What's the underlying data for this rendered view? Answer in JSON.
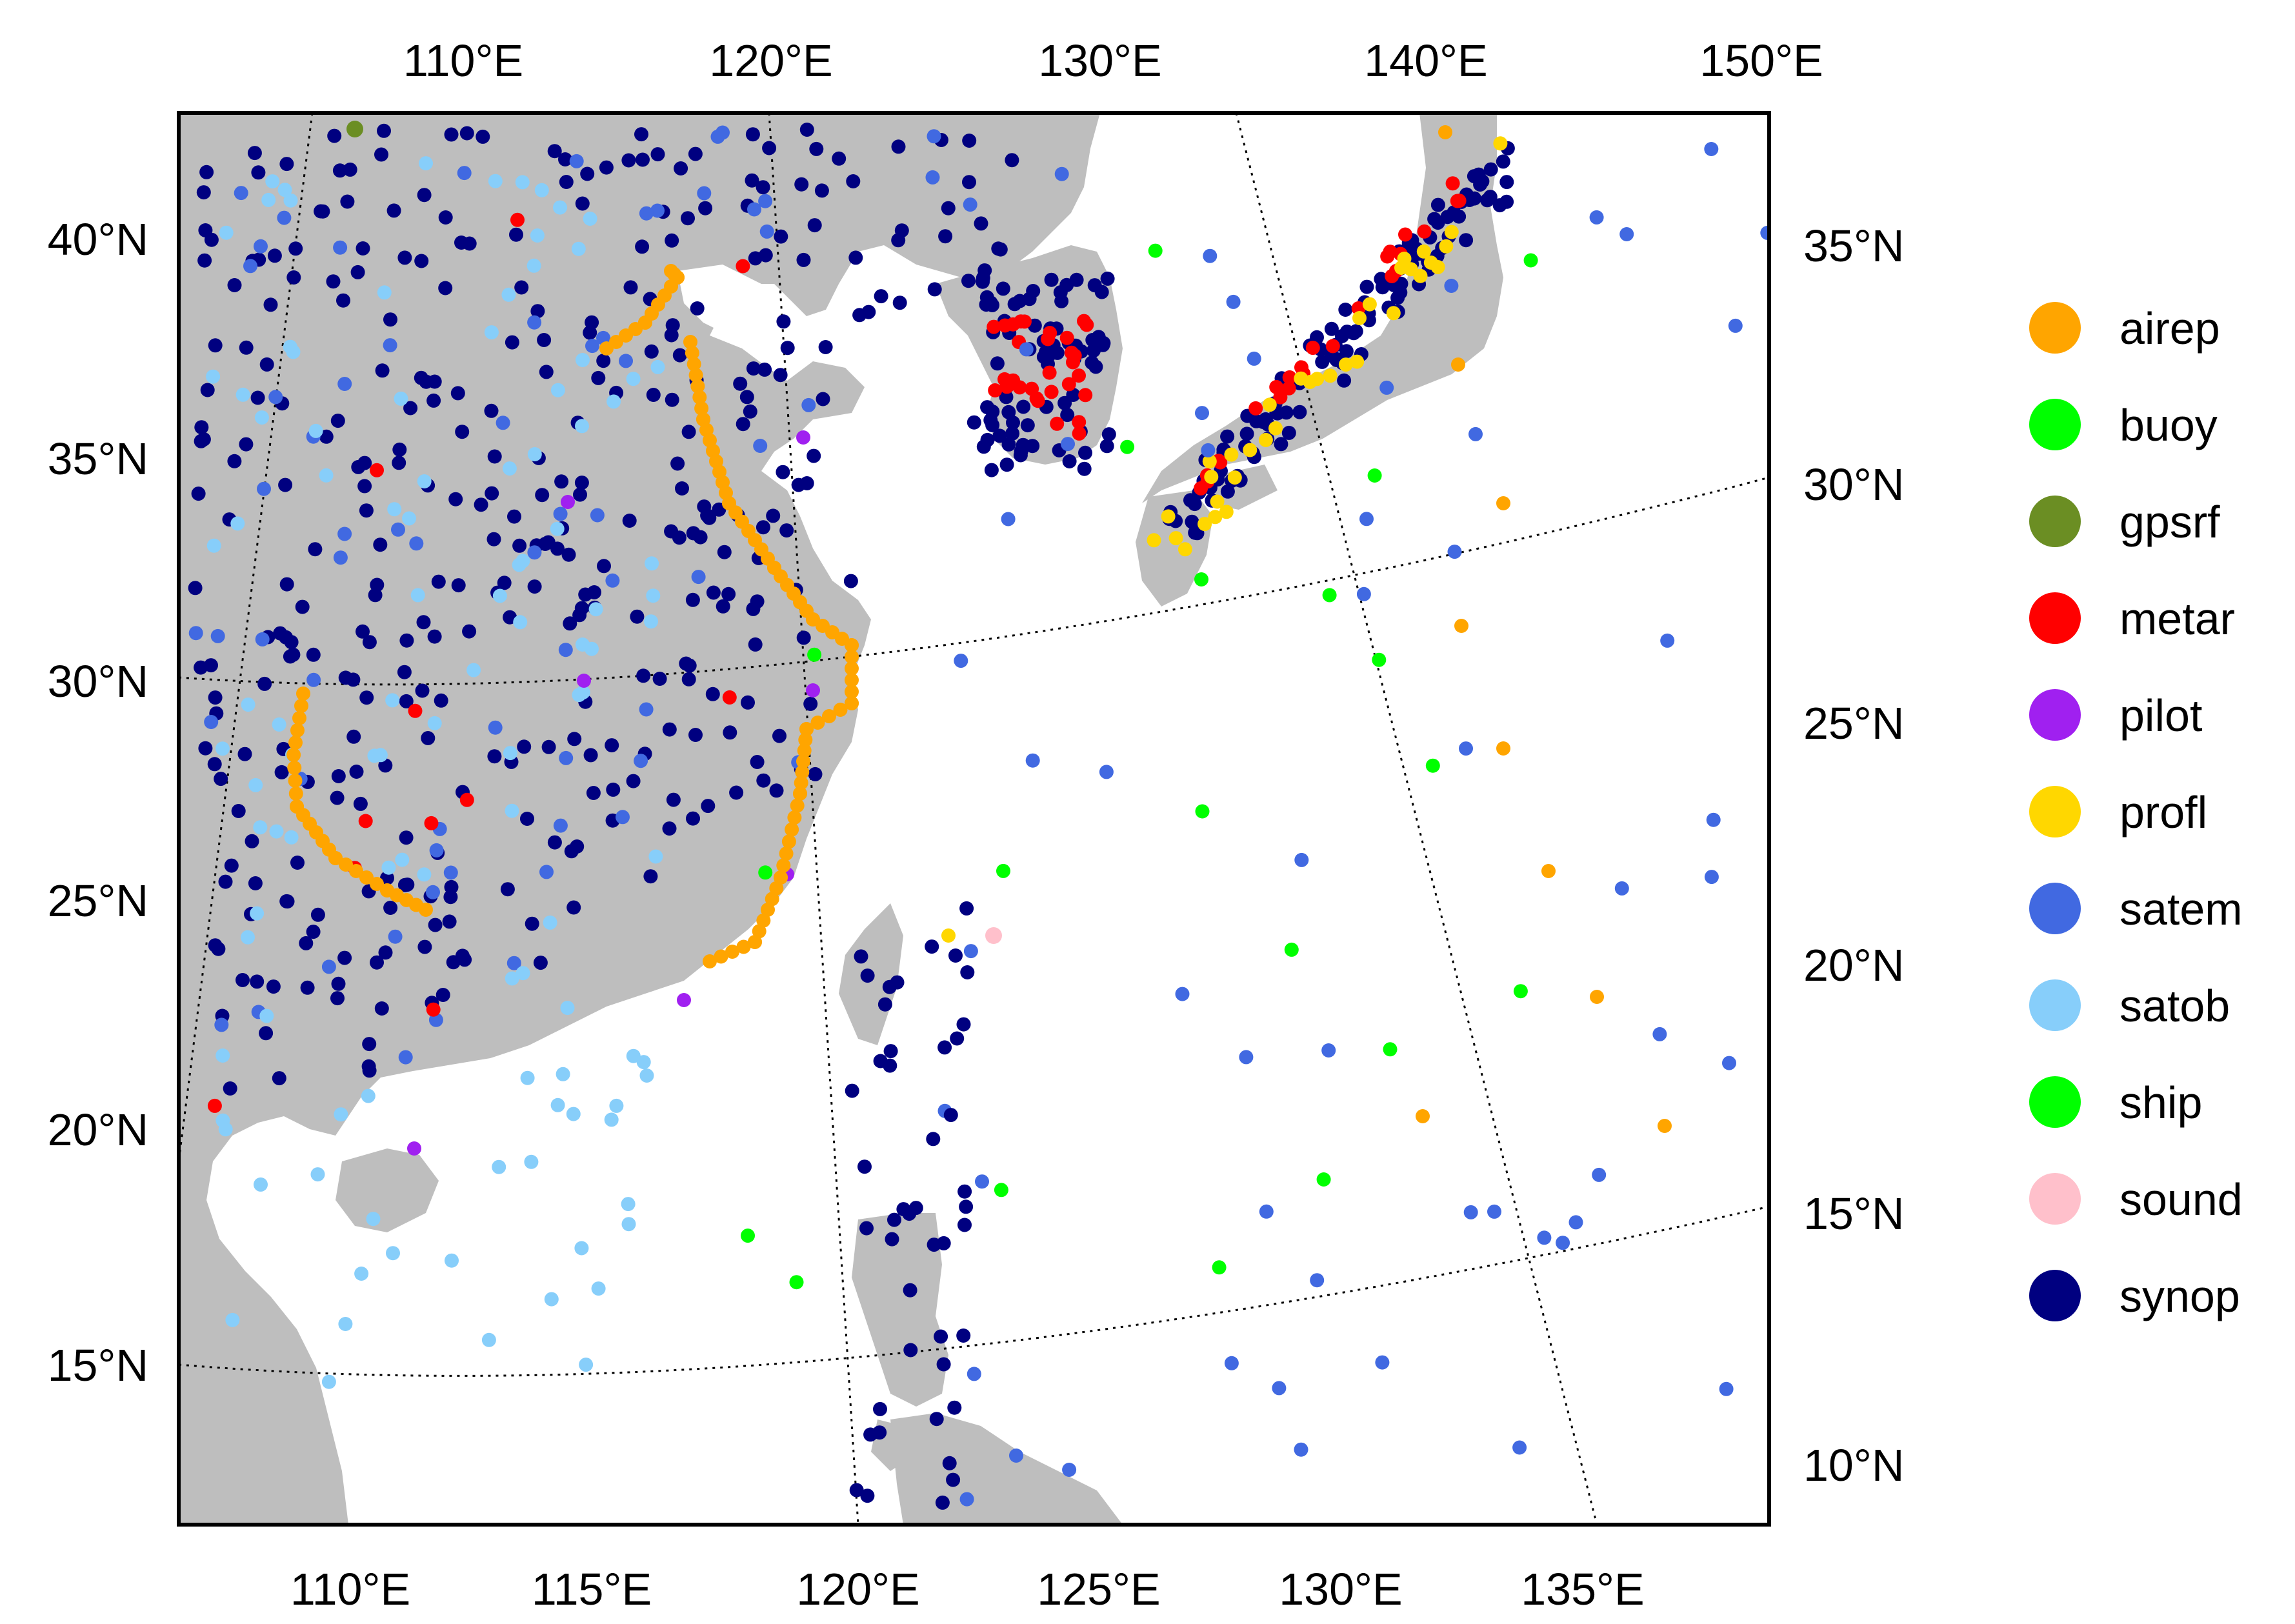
{
  "map": {
    "top_lon_labels": [
      "110°E",
      "120°E",
      "130°E",
      "140°E",
      "150°E"
    ],
    "bottom_lon_labels": [
      "110°E",
      "115°E",
      "120°E",
      "125°E",
      "130°E",
      "135°E"
    ],
    "left_lat_labels": [
      "40°N",
      "35°N",
      "30°N",
      "25°N",
      "20°N",
      "15°N"
    ],
    "right_lat_labels": [
      "35°N",
      "30°N",
      "25°N",
      "20°N",
      "15°N",
      "10°N"
    ],
    "land_color": "#bebebe",
    "ocean_color": "#ffffff",
    "graticule_style": "dotted"
  },
  "legend": {
    "items": [
      {
        "label": "airep",
        "color": "#ffa500"
      },
      {
        "label": "buoy",
        "color": "#00ff00"
      },
      {
        "label": "gpsrf",
        "color": "#6b8e23"
      },
      {
        "label": "metar",
        "color": "#ff0000"
      },
      {
        "label": "pilot",
        "color": "#a020f0"
      },
      {
        "label": "profl",
        "color": "#ffd700"
      },
      {
        "label": "satem",
        "color": "#4169e1"
      },
      {
        "label": "satob",
        "color": "#87cefa"
      },
      {
        "label": "ship",
        "color": "#00ff00"
      },
      {
        "label": "sound",
        "color": "#ffc0cb"
      },
      {
        "label": "synop",
        "color": "#000080"
      }
    ]
  }
}
